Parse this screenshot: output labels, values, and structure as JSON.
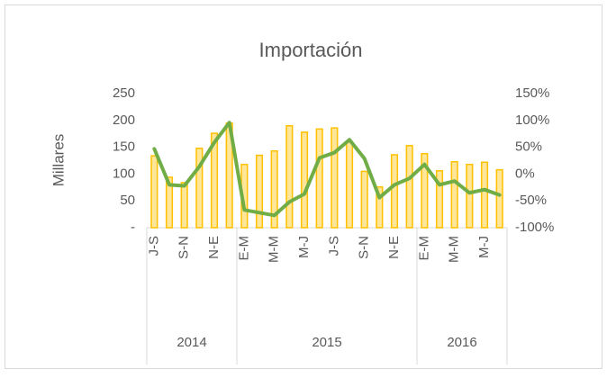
{
  "chart_data": {
    "type": "bar-line",
    "title": "Importación",
    "y_label": "Millares",
    "groups": [
      {
        "label": "2014",
        "count": 6
      },
      {
        "label": "2015",
        "count": 12
      },
      {
        "label": "2016",
        "count": 6
      }
    ],
    "categories": [
      "J-S",
      null,
      "S-N",
      null,
      "N-E",
      null,
      "E-M",
      null,
      "M-M",
      null,
      "M-J",
      null,
      "J-S",
      null,
      "S-N",
      null,
      "N-E",
      null,
      "E-M",
      null,
      "M-M",
      null,
      "M-J",
      null
    ],
    "series": [
      {
        "type": "bar",
        "color": "#ffc000",
        "values": [
          134,
          94,
          84,
          148,
          176,
          195,
          118,
          135,
          143,
          190,
          178,
          184,
          186,
          160,
          105,
          76,
          136,
          153,
          138,
          106,
          123,
          118,
          122,
          108
        ]
      },
      {
        "type": "line",
        "axis": "y2",
        "color": "#70ad47",
        "values": [
          47,
          -20,
          -22,
          14,
          59,
          96,
          -67,
          -72,
          -77,
          -52,
          -37,
          30,
          40,
          64,
          29,
          -44,
          -20,
          -8,
          18,
          -20,
          -13,
          -35,
          -29,
          -39
        ]
      }
    ],
    "ylim": [
      0,
      250
    ],
    "yticks": [
      {
        "value": 0,
        "label": "-"
      },
      50,
      100,
      150,
      200,
      250
    ],
    "y2lim": [
      -100,
      150
    ],
    "y2ticks": [
      {
        "value": -100,
        "label": "-100%"
      },
      {
        "value": -50,
        "label": "-50%"
      },
      {
        "value": 0,
        "label": "0%"
      },
      {
        "value": 50,
        "label": "50%"
      },
      {
        "value": 100,
        "label": "100%"
      },
      {
        "value": 150,
        "label": "150%"
      }
    ]
  }
}
